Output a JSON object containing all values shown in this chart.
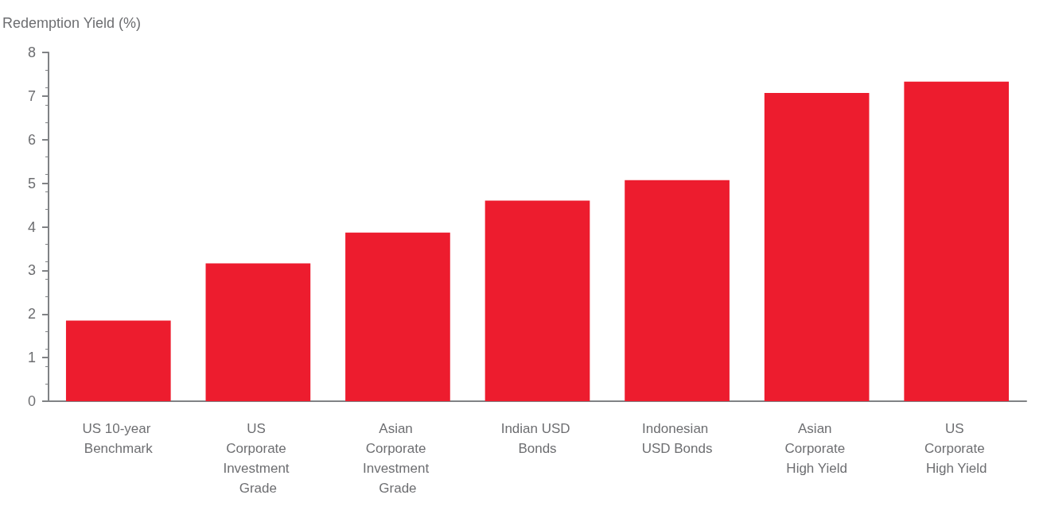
{
  "chart_data": {
    "type": "bar",
    "ylabel": "Redemption Yield (%)",
    "categories": [
      "US 10-year Benchmark",
      "US Corporate Investment Grade",
      "Asian Corporate Investment Grade",
      "Indian USD Bonds",
      "Indonesian USD Bonds",
      "Asian Corporate High Yield",
      "US Corporate High Yield"
    ],
    "values": [
      1.85,
      3.16,
      3.87,
      4.6,
      5.07,
      7.07,
      7.33
    ],
    "color": "#ed1c2e",
    "ylim": [
      0,
      8
    ],
    "yticks": [
      0,
      1,
      2,
      3,
      4,
      5,
      6,
      7,
      8
    ],
    "grid": false
  }
}
